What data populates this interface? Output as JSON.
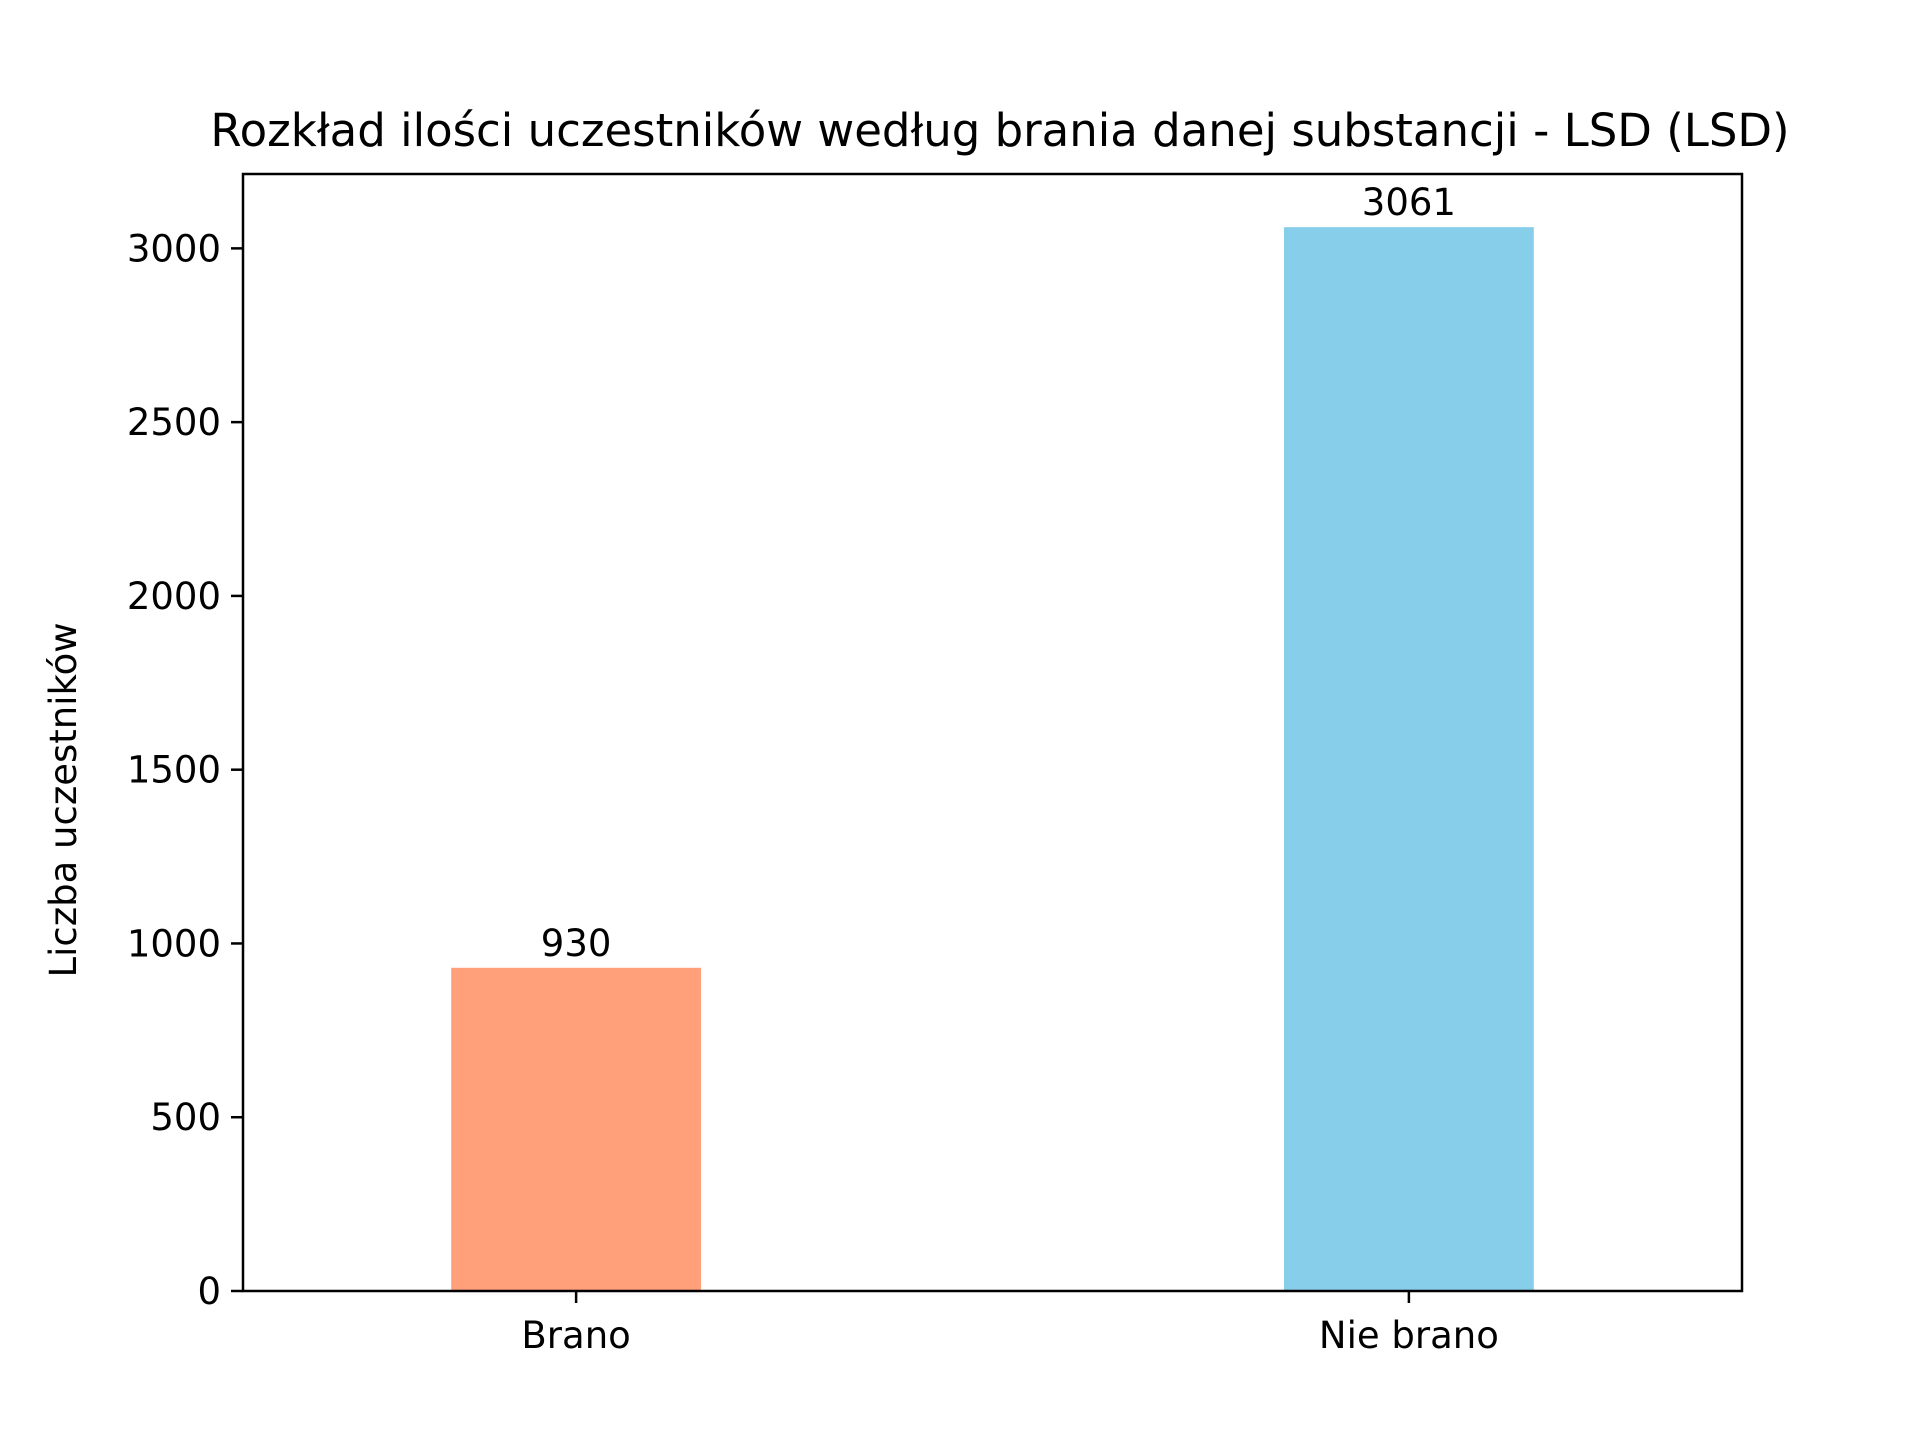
{
  "chart_data": {
    "type": "bar",
    "title": "Rozkład ilości uczestników według brania danej substancji - LSD (LSD)",
    "xlabel": "",
    "ylabel": "Liczba uczestników",
    "categories": [
      "Brano",
      "Nie brano"
    ],
    "values": [
      930,
      3061
    ],
    "value_labels": [
      "930",
      "3061"
    ],
    "colors": [
      "#ffa07a",
      "#87ceeb"
    ],
    "ylim": [
      0,
      3214
    ],
    "yticks": [
      0,
      500,
      1000,
      1500,
      2000,
      2500,
      3000
    ],
    "grid": false,
    "legend": "none"
  }
}
